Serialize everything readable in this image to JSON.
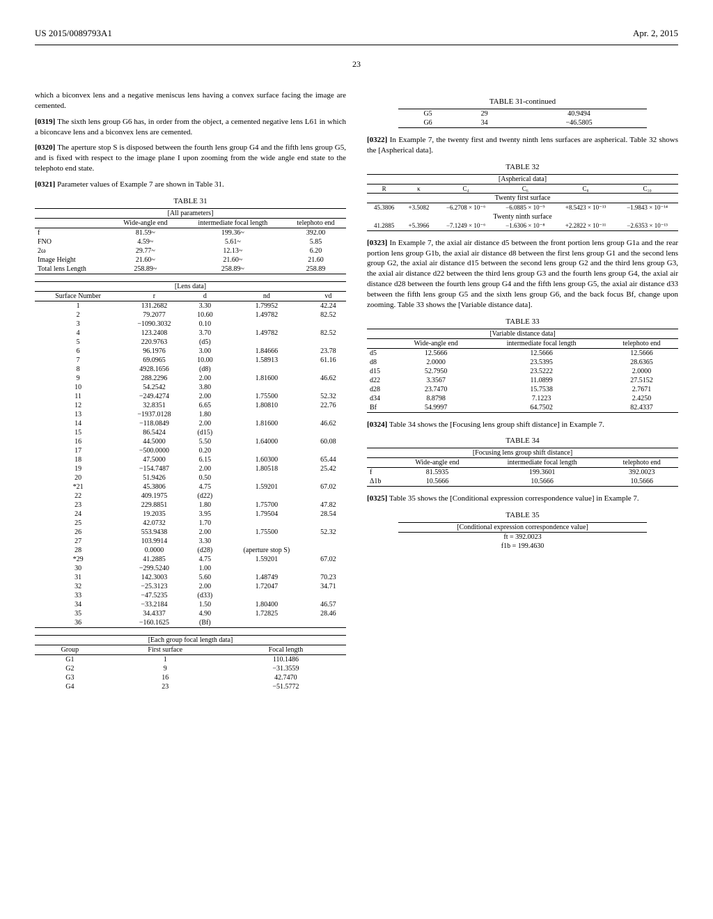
{
  "header": {
    "left": "US 2015/0089793A1",
    "right": "Apr. 2, 2015"
  },
  "page_number": "23",
  "body": {
    "p1": "which a biconvex lens and a negative meniscus lens having a convex surface facing the image are cemented.",
    "p0319_num": "[0319]",
    "p0319": "The sixth lens group G6 has, in order from the object, a cemented negative lens L61 in which a biconcave lens and a biconvex lens are cemented.",
    "p0320_num": "[0320]",
    "p0320": "The aperture stop S is disposed between the fourth lens group G4 and the fifth lens group G5, and is fixed with respect to the image plane I upon zooming from the wide angle end state to the telephoto end state.",
    "p0321_num": "[0321]",
    "p0321": "Parameter values of Example 7 are shown in Table 31.",
    "p0322_num": "[0322]",
    "p0322": "In Example 7, the twenty first and twenty ninth lens surfaces are aspherical. Table 32 shows the [Aspherical data].",
    "p0323_num": "[0323]",
    "p0323": "In Example 7, the axial air distance d5 between the front portion lens group G1a and the rear portion lens group G1b, the axial air distance d8 between the first lens group G1 and the second lens group G2, the axial air distance d15 between the second lens group G2 and the third lens group G3, the axial air distance d22 between the third lens group G3 and the fourth lens group G4, the axial air distance d28 between the fourth lens group G4 and the fifth lens group G5, the axial air distance d33 between the fifth lens group G5 and the sixth lens group G6, and the back focus Bf, change upon zooming. Table 33 shows the [Variable distance data].",
    "p0324_num": "[0324]",
    "p0324": "Table 34 shows the [Focusing lens group shift distance] in Example 7.",
    "p0325_num": "[0325]",
    "p0325": "Table 35 shows the [Conditional expression correspondence value] in Example 7."
  },
  "table31": {
    "title": "TABLE 31",
    "subtitle": "[All parameters]",
    "header1": [
      "",
      "Wide-angle end",
      "intermediate focal length",
      "telephoto end"
    ],
    "rows1": [
      [
        "f",
        "81.59~",
        "199.36~",
        "392.00"
      ],
      [
        "FNO",
        "4.59~",
        "5.61~",
        "5.85"
      ],
      [
        "2ω",
        "29.77~",
        "12.13~",
        "6.20"
      ],
      [
        "Image Height",
        "21.60~",
        "21.60~",
        "21.60"
      ],
      [
        "Total lens Length",
        "258.89~",
        "258.89~",
        "258.89"
      ]
    ],
    "lens_subtitle": "[Lens data]",
    "lens_header": [
      "Surface Number",
      "r",
      "d",
      "nd",
      "vd"
    ],
    "lens_rows": [
      [
        "1",
        "131.2682",
        "3.30",
        "1.79952",
        "42.24"
      ],
      [
        "2",
        "79.2077",
        "10.60",
        "1.49782",
        "82.52"
      ],
      [
        "3",
        "−1090.3032",
        "0.10",
        "",
        ""
      ],
      [
        "4",
        "123.2408",
        "3.70",
        "1.49782",
        "82.52"
      ],
      [
        "5",
        "220.9763",
        "(d5)",
        "",
        ""
      ],
      [
        "6",
        "96.1976",
        "3.00",
        "1.84666",
        "23.78"
      ],
      [
        "7",
        "69.0965",
        "10.00",
        "1.58913",
        "61.16"
      ],
      [
        "8",
        "4928.1656",
        "(d8)",
        "",
        ""
      ],
      [
        "9",
        "288.2296",
        "2.00",
        "1.81600",
        "46.62"
      ],
      [
        "10",
        "54.2542",
        "3.80",
        "",
        ""
      ],
      [
        "11",
        "−249.4274",
        "2.00",
        "1.75500",
        "52.32"
      ],
      [
        "12",
        "32.8351",
        "6.65",
        "1.80810",
        "22.76"
      ],
      [
        "13",
        "−1937.0128",
        "1.80",
        "",
        ""
      ],
      [
        "14",
        "−118.0849",
        "2.00",
        "1.81600",
        "46.62"
      ],
      [
        "15",
        "86.5424",
        "(d15)",
        "",
        ""
      ],
      [
        "16",
        "44.5000",
        "5.50",
        "1.64000",
        "60.08"
      ],
      [
        "17",
        "−500.0000",
        "0.20",
        "",
        ""
      ],
      [
        "18",
        "47.5000",
        "6.15",
        "1.60300",
        "65.44"
      ],
      [
        "19",
        "−154.7487",
        "2.00",
        "1.80518",
        "25.42"
      ],
      [
        "20",
        "51.9426",
        "0.50",
        "",
        ""
      ],
      [
        "*21",
        "45.3806",
        "4.75",
        "1.59201",
        "67.02"
      ],
      [
        "22",
        "409.1975",
        "(d22)",
        "",
        ""
      ],
      [
        "23",
        "229.8851",
        "1.80",
        "1.75700",
        "47.82"
      ],
      [
        "24",
        "19.2035",
        "3.95",
        "1.79504",
        "28.54"
      ],
      [
        "25",
        "42.0732",
        "1.70",
        "",
        ""
      ],
      [
        "26",
        "553.9438",
        "2.00",
        "1.75500",
        "52.32"
      ],
      [
        "27",
        "103.9914",
        "3.30",
        "",
        ""
      ],
      [
        "28",
        "0.0000",
        "(d28)",
        "(aperture stop S)",
        ""
      ],
      [
        "*29",
        "41.2885",
        "4.75",
        "1.59201",
        "67.02"
      ],
      [
        "30",
        "−299.5240",
        "1.00",
        "",
        ""
      ],
      [
        "31",
        "142.3003",
        "5.60",
        "1.48749",
        "70.23"
      ],
      [
        "32",
        "−25.3123",
        "2.00",
        "1.72047",
        "34.71"
      ],
      [
        "33",
        "−47.5235",
        "(d33)",
        "",
        ""
      ],
      [
        "34",
        "−33.2184",
        "1.50",
        "1.80400",
        "46.57"
      ],
      [
        "35",
        "34.4337",
        "4.90",
        "1.72825",
        "28.46"
      ],
      [
        "36",
        "−160.1625",
        "(Bf)",
        "",
        ""
      ]
    ],
    "group_subtitle": "[Each group focal length data]",
    "group_header": [
      "Group",
      "First surface",
      "Focal length"
    ],
    "group_rows": [
      [
        "G1",
        "1",
        "110.1486"
      ],
      [
        "G2",
        "9",
        "−31.3559"
      ],
      [
        "G3",
        "16",
        "42.7470"
      ],
      [
        "G4",
        "23",
        "−51.5772"
      ]
    ]
  },
  "table31_cont": {
    "title": "TABLE 31-continued",
    "rows": [
      [
        "G5",
        "29",
        "40.9494"
      ],
      [
        "G6",
        "34",
        "−46.5805"
      ]
    ]
  },
  "table32": {
    "title": "TABLE 32",
    "subtitle": "[Aspherical data]",
    "header": [
      "R",
      "κ",
      "C₄",
      "C₆",
      "C₈",
      "C₁₀"
    ],
    "sub1": "Twenty first surface",
    "row1": [
      "45.3806",
      "+3.5082",
      "−6.2708 × 10⁻⁶",
      "−6.0885 × 10⁻⁹",
      "+8.5423 × 10⁻¹³",
      "−1.9843 × 10⁻¹⁴"
    ],
    "sub2": "Twenty ninth surface",
    "row2": [
      "41.2885",
      "+5.3966",
      "−7.1249 × 10⁻⁶",
      "−1.6306 × 10⁻⁸",
      "+2.2822 × 10⁻¹¹",
      "−2.6353 × 10⁻¹³"
    ]
  },
  "table33": {
    "title": "TABLE 33",
    "subtitle": "[Variable distance data]",
    "header": [
      "",
      "Wide-angle end",
      "intermediate focal length",
      "telephoto end"
    ],
    "rows": [
      [
        "d5",
        "12.5666",
        "12.5666",
        "12.5666"
      ],
      [
        "d8",
        "2.0000",
        "23.5395",
        "28.6365"
      ],
      [
        "d15",
        "52.7950",
        "23.5222",
        "2.0000"
      ],
      [
        "d22",
        "3.3567",
        "11.0899",
        "27.5152"
      ],
      [
        "d28",
        "23.7470",
        "15.7538",
        "2.7671"
      ],
      [
        "d34",
        "8.8798",
        "7.1223",
        "2.4250"
      ],
      [
        "Bf",
        "54.9997",
        "64.7502",
        "82.4337"
      ]
    ]
  },
  "table34": {
    "title": "TABLE 34",
    "subtitle": "[Focusing lens group shift distance]",
    "header": [
      "",
      "Wide-angle end",
      "intermediate focal length",
      "telephoto end"
    ],
    "rows": [
      [
        "f",
        "81.5935",
        "199.3601",
        "392.0023"
      ],
      [
        "Δ1b",
        "10.5666",
        "10.5666",
        "10.5666"
      ]
    ]
  },
  "table35": {
    "title": "TABLE 35",
    "subtitle": "[Conditional expression correspondence value]",
    "rows": [
      "ft = 392.0023",
      "f1b = 199.4630"
    ]
  }
}
